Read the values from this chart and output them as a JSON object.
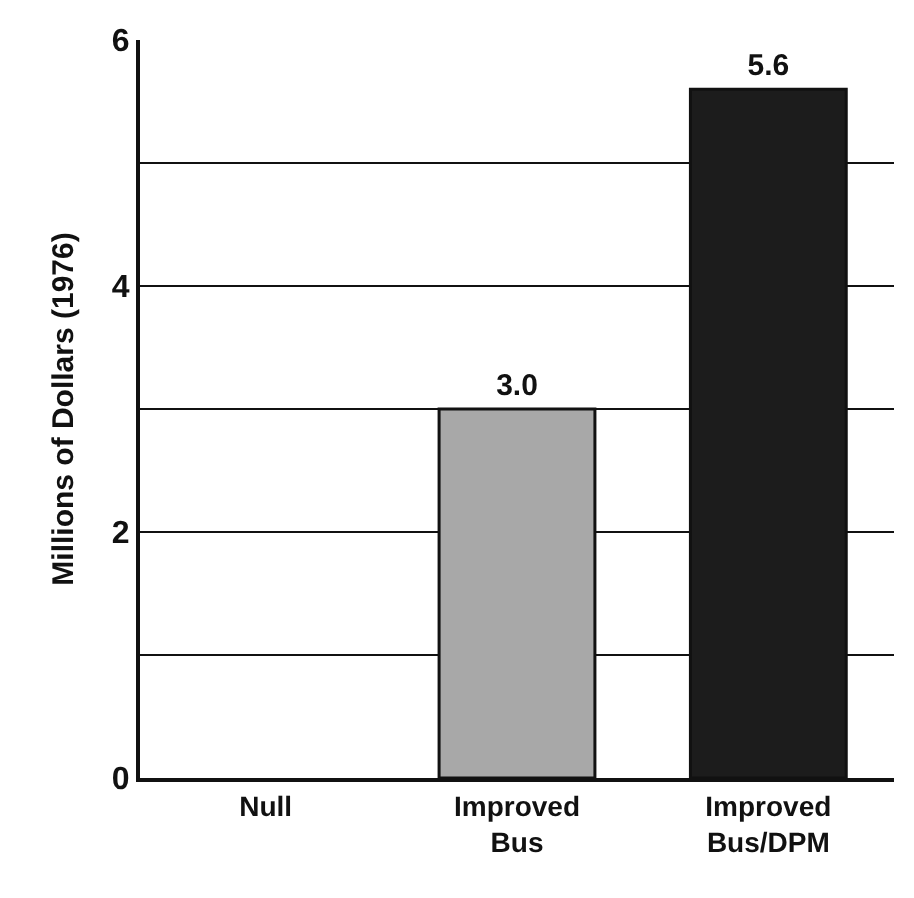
{
  "chart_data": {
    "type": "bar",
    "ylabel": "Millions of Dollars (1976)",
    "categories": [
      "Null",
      "Improved Bus",
      "Improved Bus/DPM"
    ],
    "values": [
      null,
      3.0,
      5.6
    ],
    "colors": [
      "#a8a8a8",
      "#a8a8a8",
      "#1c1c1c"
    ],
    "value_labels": [
      null,
      "3.0",
      "5.6"
    ],
    "ylim": [
      0,
      6
    ],
    "yticks": [
      0,
      {
        "value": 1,
        "label": null
      },
      2,
      {
        "value": 3,
        "label": null
      },
      4,
      {
        "value": 5,
        "label": null
      },
      6
    ],
    "grid": "y"
  }
}
